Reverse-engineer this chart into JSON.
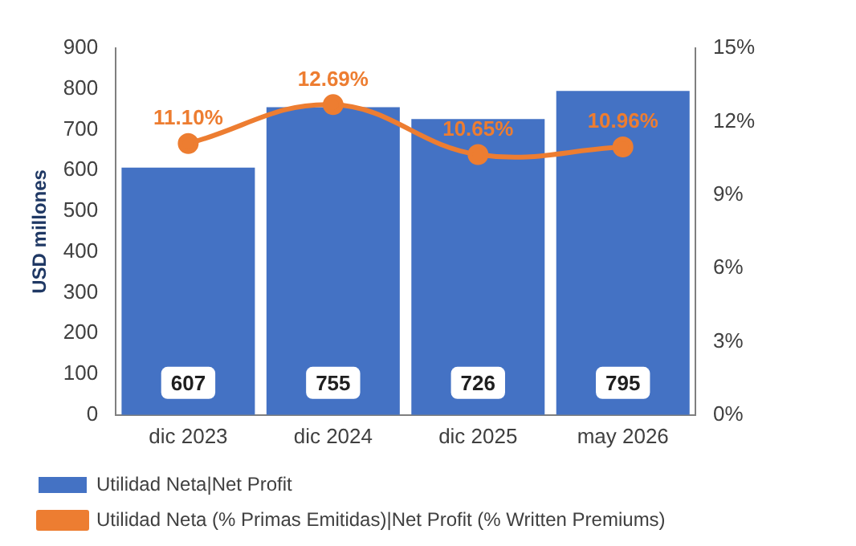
{
  "chart_data": {
    "type": "bar",
    "ylabel": "USD millones",
    "categories": [
      "dic 2023",
      "dic 2024",
      "dic 2025",
      "may 2026"
    ],
    "series": [
      {
        "name": "Utilidad Neta|Net Profit",
        "color": "#4472c4",
        "values": [
          607,
          755,
          726,
          795
        ],
        "value_labels": [
          "607",
          "755",
          "726",
          "795"
        ]
      },
      {
        "name": "Utilidad Neta (% Primas Emitidas)|Net Profit (% Written Premiums)",
        "type": "line",
        "axis": "y2",
        "color": "#ed7d31",
        "marker": "circle",
        "values": [
          11.1,
          12.69,
          10.65,
          10.96
        ],
        "value_labels": [
          "11.10%",
          "12.69%",
          "10.65%",
          "10.96%"
        ]
      }
    ],
    "ylim": [
      0,
      900
    ],
    "yticks": [
      0,
      100,
      200,
      300,
      400,
      500,
      600,
      700,
      800,
      900
    ],
    "y2lim": [
      0,
      15
    ],
    "y2ticks": [
      {
        "value": 0,
        "label": "0%"
      },
      {
        "value": 3,
        "label": "3%"
      },
      {
        "value": 6,
        "label": "6%"
      },
      {
        "value": 9,
        "label": "9%"
      },
      {
        "value": 12,
        "label": "12%"
      },
      {
        "value": 15,
        "label": "15%"
      }
    ],
    "grid": false,
    "legend": "bottom"
  }
}
